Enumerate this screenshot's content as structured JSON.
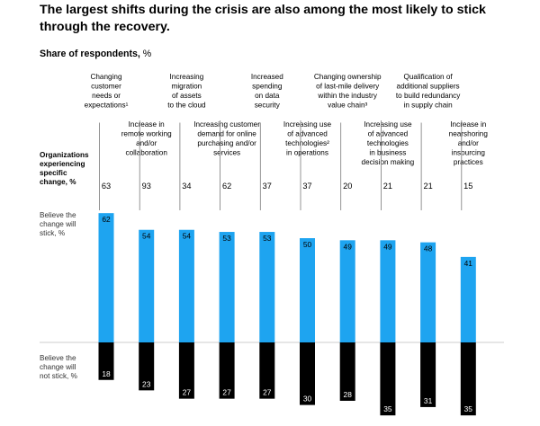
{
  "chart_data": {
    "type": "bar",
    "title": "The largest shifts during the crisis are also among the most likely to stick through the recovery.",
    "subtitle_bold": "Share of respondents,",
    "subtitle_unit": " %",
    "row_labels": {
      "experiencing": [
        "Organizations",
        "experiencing",
        "specific",
        "change, %"
      ],
      "stick": [
        "Believe the",
        "change will",
        "stick, %"
      ],
      "not_stick": [
        "Believe the",
        "change will",
        "not stick, %"
      ]
    },
    "categories": [
      [
        "Changing",
        "customer",
        "needs or",
        "expectations¹"
      ],
      [
        "Increase in",
        "remote working",
        "and/or",
        "collaboration"
      ],
      [
        "Increasing",
        "migration",
        "of assets",
        "to the cloud"
      ],
      [
        "Increasing customer",
        "demand for online",
        "purchasing and/or",
        "services"
      ],
      [
        "Increased",
        "spending",
        "on data",
        "security"
      ],
      [
        "Increasing use",
        "of advanced",
        "technologies²",
        "in operations"
      ],
      [
        "Changing ownership",
        "of last-mile delivery",
        "within the industry",
        "value chain³"
      ],
      [
        "Increasing use",
        "of advanced",
        "technologies",
        "in business",
        "decision making"
      ],
      [
        "Qualification of",
        "additional suppliers",
        "to build redundancy",
        "in supply chain"
      ],
      [
        "Increase in",
        "nearshoring",
        "and/or",
        "insourcing",
        "practices"
      ]
    ],
    "series": [
      {
        "name": "Organizations experiencing specific change, %",
        "values": [
          63,
          93,
          34,
          62,
          37,
          37,
          20,
          21,
          21,
          15
        ]
      },
      {
        "name": "Believe the change will stick, %",
        "values": [
          62,
          54,
          54,
          53,
          53,
          50,
          49,
          49,
          48,
          41
        ]
      },
      {
        "name": "Believe the change will not stick, %",
        "values": [
          18,
          23,
          27,
          27,
          27,
          30,
          28,
          35,
          31,
          35
        ]
      }
    ],
    "colors": {
      "stick": "#1ea4f0",
      "not_stick": "#000000",
      "leader": "#7a7a7a",
      "baseline": "#bbbbbb"
    }
  }
}
